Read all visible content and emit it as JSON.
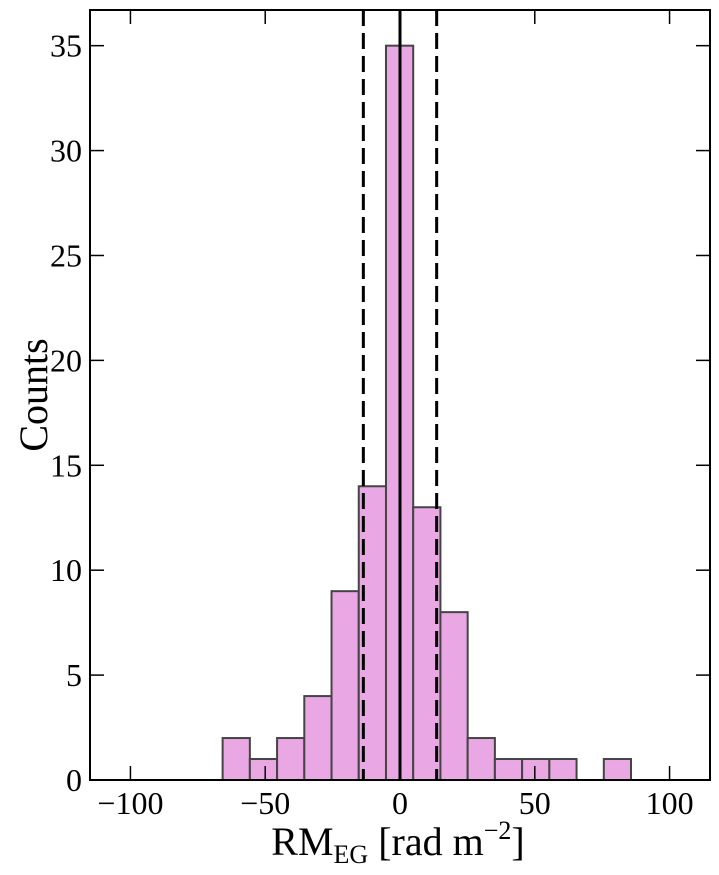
{
  "chart_data": {
    "type": "histogram",
    "bins": [
      -65.8,
      -55.7,
      -45.6,
      -35.5,
      -25.4,
      -15.3,
      -5.2,
      4.9,
      15.0,
      25.1,
      35.2,
      45.3,
      55.4,
      65.5,
      75.6,
      85.7
    ],
    "counts": [
      2,
      1,
      2,
      4,
      9,
      14,
      35,
      13,
      8,
      2,
      1,
      1,
      1,
      0,
      1
    ],
    "color": "#e9a8e4",
    "edgecolor": "#444444",
    "xlim": [
      -115,
      115
    ],
    "ylim": [
      0,
      36.7
    ],
    "xticks": [
      {
        "value": -100,
        "label": "−100"
      },
      {
        "value": -50,
        "label": "−50"
      },
      0,
      50,
      100
    ],
    "yticks": [
      0,
      5,
      10,
      15,
      20,
      25,
      30,
      35
    ],
    "ylabel": "Counts",
    "xlabel": {
      "main": "RM",
      "sub": "EG",
      "rest": " [rad m",
      "sup": "−2",
      "end": "]"
    },
    "vlines": [
      {
        "x": -13.6,
        "style": "dashed"
      },
      {
        "x": 0,
        "style": "solid"
      },
      {
        "x": 13.6,
        "style": "dashed"
      }
    ]
  }
}
